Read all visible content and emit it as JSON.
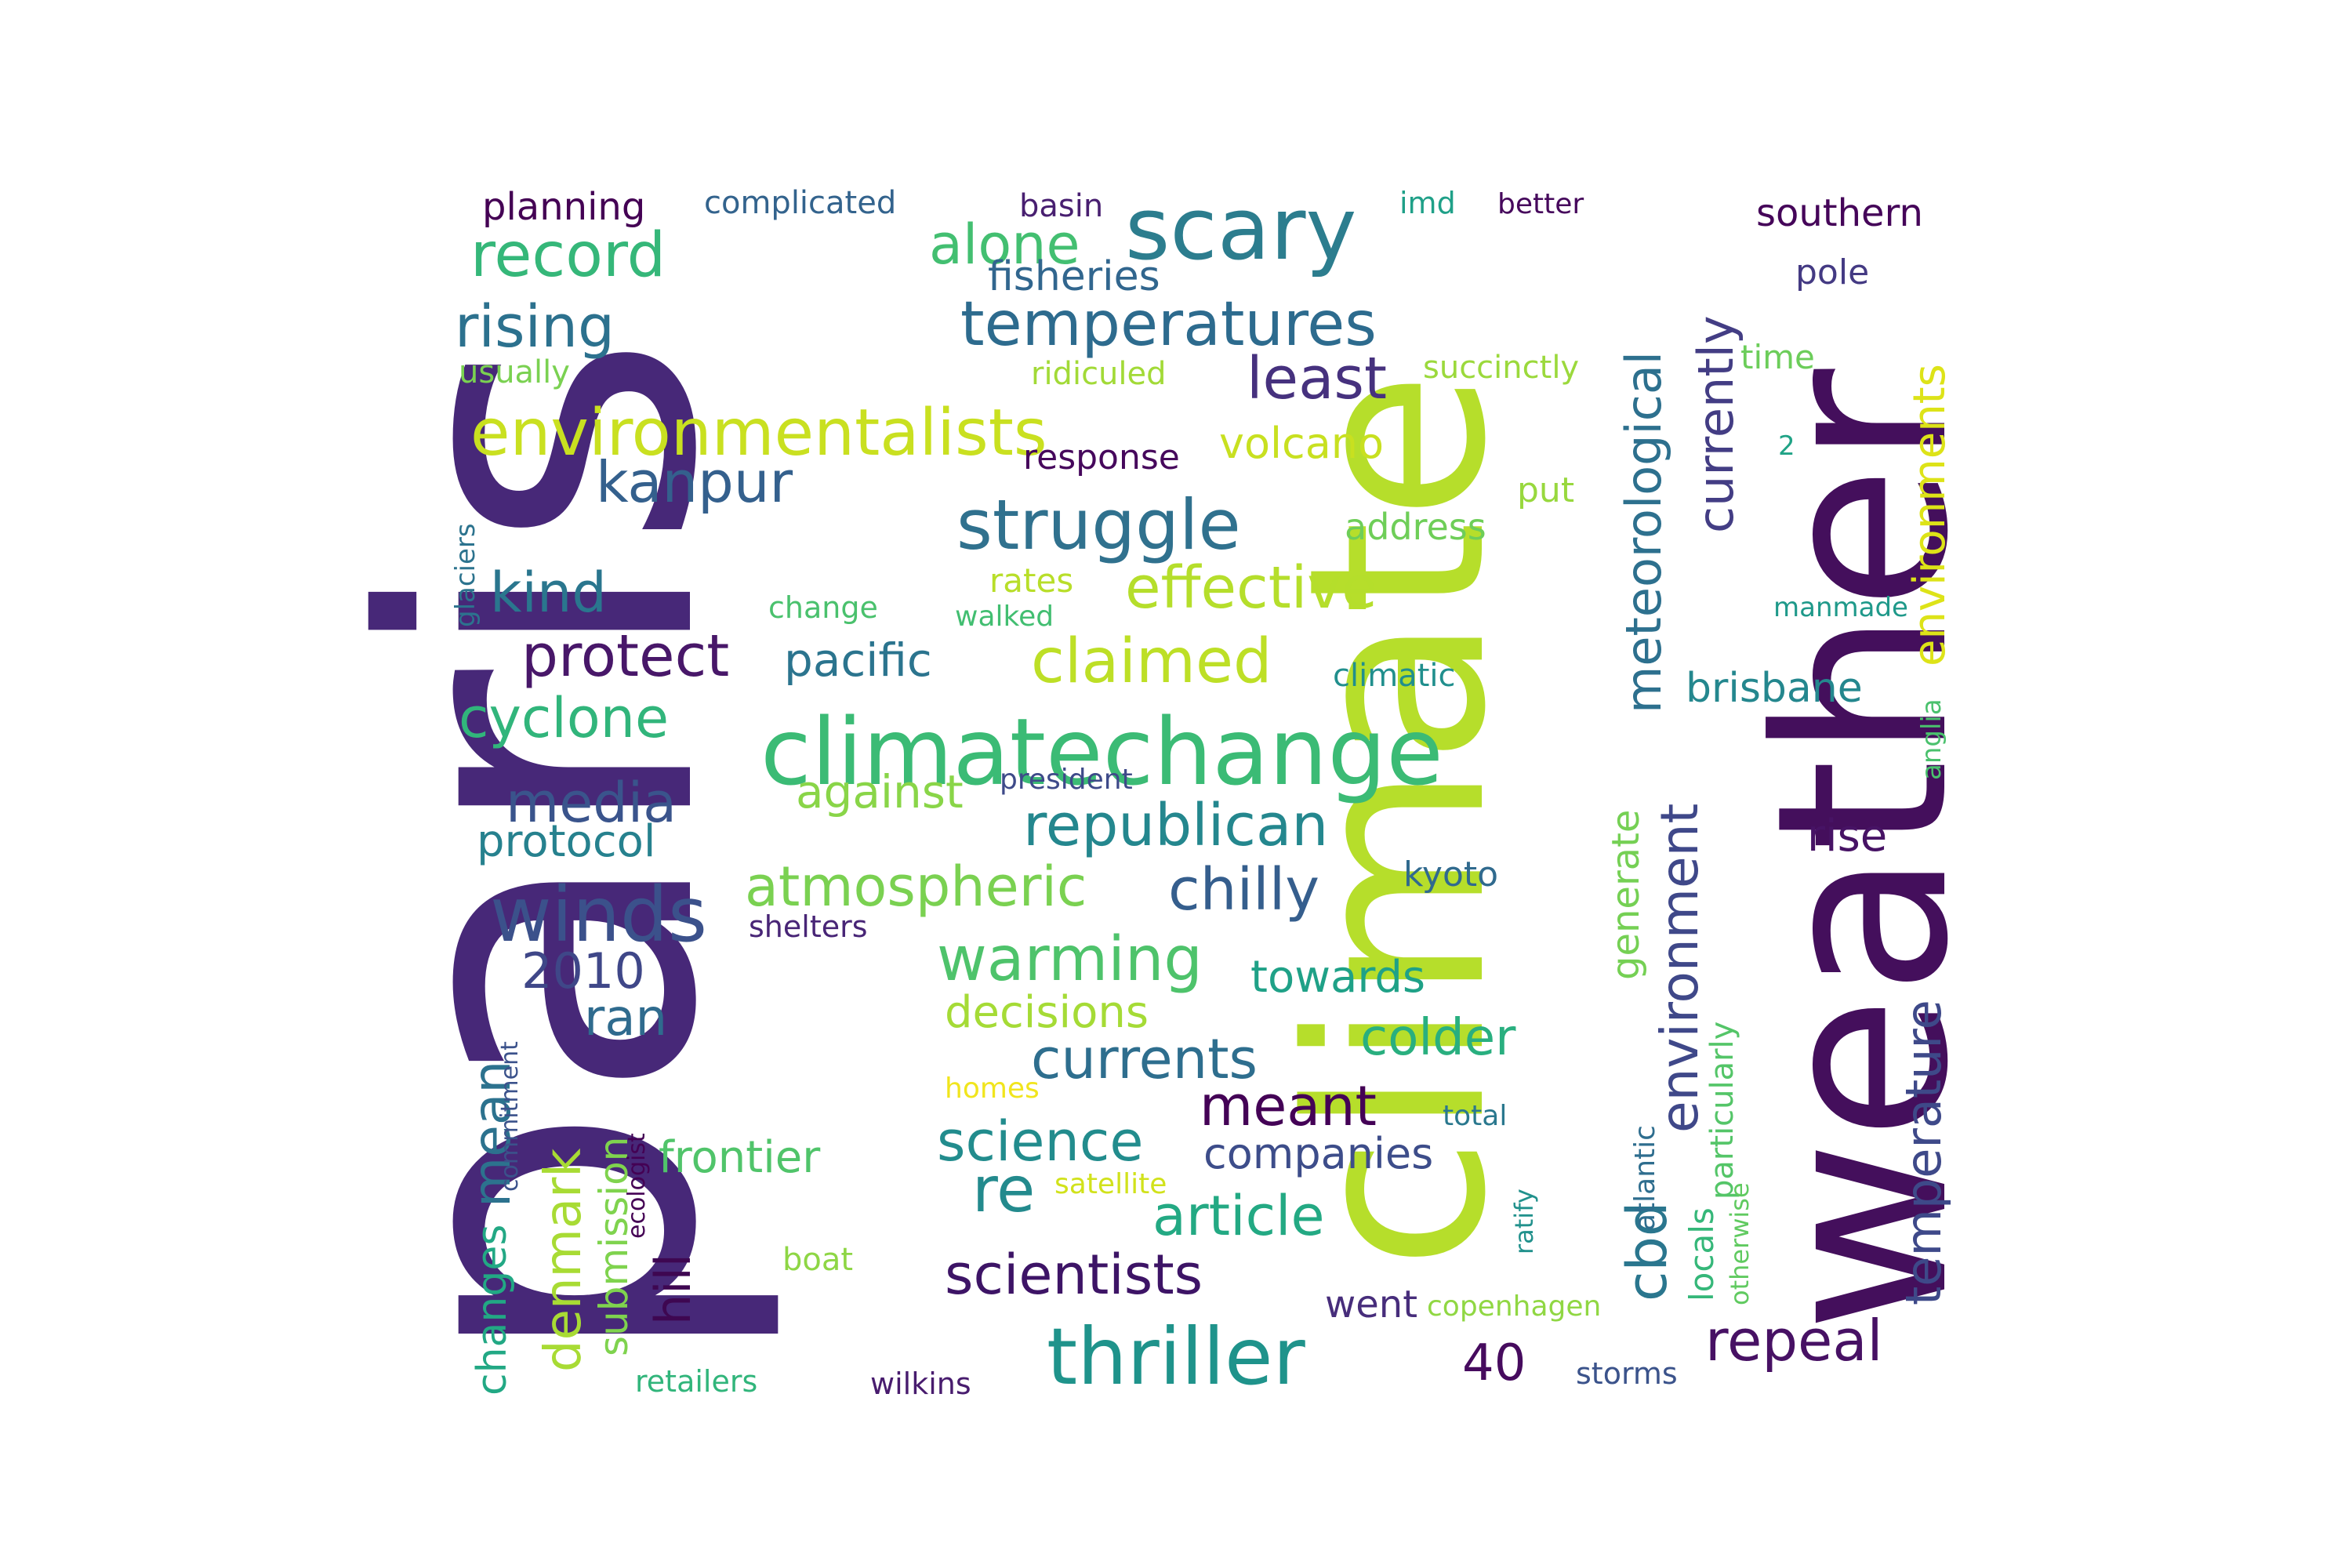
{
  "words": [
    {
      "text": "paris",
      "color": "#472878"
    },
    {
      "text": "climate",
      "color": "#b6de2b"
    },
    {
      "text": "weather",
      "color": "#440f5c"
    },
    {
      "text": "climatechange",
      "color": "#3bbb75"
    },
    {
      "text": "scary",
      "color": "#2c7d8e"
    },
    {
      "text": "environmentalists",
      "color": "#c9e020"
    },
    {
      "text": "temperatures",
      "color": "#2d6b8e"
    },
    {
      "text": "struggle",
      "color": "#30718e"
    },
    {
      "text": "record",
      "color": "#35b779"
    },
    {
      "text": "rising",
      "color": "#2c718e"
    },
    {
      "text": "alone",
      "color": "#43bf71"
    },
    {
      "text": "least",
      "color": "#46317e"
    },
    {
      "text": "kanpur",
      "color": "#34608d"
    },
    {
      "text": "effective",
      "color": "#b5de2b"
    },
    {
      "text": "claimed",
      "color": "#bddf26"
    },
    {
      "text": "protect",
      "color": "#481769"
    },
    {
      "text": "pacific",
      "color": "#2b748e"
    },
    {
      "text": "kind",
      "color": "#2a768e"
    },
    {
      "text": "cyclone",
      "color": "#31b57b"
    },
    {
      "text": "media",
      "color": "#3a548c"
    },
    {
      "text": "republican",
      "color": "#24878e"
    },
    {
      "text": "against",
      "color": "#89d548"
    },
    {
      "text": "protocol",
      "color": "#26818e"
    },
    {
      "text": "winds",
      "color": "#3b518b"
    },
    {
      "text": "atmospheric",
      "color": "#7ad151"
    },
    {
      "text": "chilly",
      "color": "#355e8d"
    },
    {
      "text": "warming",
      "color": "#4ec36b"
    },
    {
      "text": "2010",
      "color": "#3f4788"
    },
    {
      "text": "ran",
      "color": "#2f6b8e"
    },
    {
      "text": "towards",
      "color": "#1fa187"
    },
    {
      "text": "decisions",
      "color": "#a5db36"
    },
    {
      "text": "currents",
      "color": "#2e6e8e"
    },
    {
      "text": "colder",
      "color": "#29af7f"
    },
    {
      "text": "meant",
      "color": "#440256"
    },
    {
      "text": "science",
      "color": "#228c8d"
    },
    {
      "text": "companies",
      "color": "#3d4d8a"
    },
    {
      "text": "re",
      "color": "#238a8d"
    },
    {
      "text": "article",
      "color": "#23a983"
    },
    {
      "text": "frontier",
      "color": "#50c46a"
    },
    {
      "text": "scientists",
      "color": "#3d1466"
    },
    {
      "text": "thriller",
      "color": "#1f938b"
    },
    {
      "text": "40",
      "color": "#460b5e"
    },
    {
      "text": "went",
      "color": "#472d7b"
    },
    {
      "text": "copenhagen",
      "color": "#90d743"
    },
    {
      "text": "storms",
      "color": "#3b538b"
    },
    {
      "text": "retailers",
      "color": "#31b57b"
    },
    {
      "text": "wilkins",
      "color": "#481c6e"
    },
    {
      "text": "boat",
      "color": "#8ed645"
    },
    {
      "text": "satellite",
      "color": "#d1e21b"
    },
    {
      "text": "homes",
      "color": "#f1e51d"
    },
    {
      "text": "total",
      "color": "#2a788e"
    },
    {
      "text": "kyoto",
      "color": "#306a8e"
    },
    {
      "text": "shelters",
      "color": "#482576"
    },
    {
      "text": "president",
      "color": "#3e4a89"
    },
    {
      "text": "fisheries",
      "color": "#31668e"
    },
    {
      "text": "planning",
      "color": "#440154"
    },
    {
      "text": "complicated",
      "color": "#33638d"
    },
    {
      "text": "basin",
      "color": "#481f70"
    },
    {
      "text": "imd",
      "color": "#1fa088"
    },
    {
      "text": "better",
      "color": "#46085c"
    },
    {
      "text": "southern",
      "color": "#450559"
    },
    {
      "text": "pole",
      "color": "#443a83"
    },
    {
      "text": "time",
      "color": "#6ccd5a"
    },
    {
      "text": "succinctly",
      "color": "#9bd93c"
    },
    {
      "text": "ridiculed",
      "color": "#a2da37"
    },
    {
      "text": "usually",
      "color": "#7ad151"
    },
    {
      "text": "response",
      "color": "#46085c"
    },
    {
      "text": "volcano",
      "color": "#c8e020"
    },
    {
      "text": "2",
      "color": "#20a386"
    },
    {
      "text": "put",
      "color": "#98d83e"
    },
    {
      "text": "address",
      "color": "#6ece58"
    },
    {
      "text": "rates",
      "color": "#b8de29"
    },
    {
      "text": "change",
      "color": "#4ac16d"
    },
    {
      "text": "walked",
      "color": "#42be71"
    },
    {
      "text": "climatic",
      "color": "#218f8d"
    },
    {
      "text": "manmade",
      "color": "#1f998a"
    },
    {
      "text": "brisbane",
      "color": "#24878e"
    },
    {
      "text": "rise",
      "color": "#471365"
    },
    {
      "text": "repeal",
      "color": "#471164"
    },
    {
      "text": "currently",
      "color": "#433d84"
    },
    {
      "text": "meteorological",
      "color": "#2d708e"
    },
    {
      "text": "environments",
      "color": "#dde318"
    },
    {
      "text": "environment",
      "color": "#3f4889"
    },
    {
      "text": "generate",
      "color": "#75d054"
    },
    {
      "text": "cbd",
      "color": "#2a768e"
    },
    {
      "text": "locals",
      "color": "#35b779"
    },
    {
      "text": "particularly",
      "color": "#54c568"
    },
    {
      "text": "otherwise",
      "color": "#60ca60"
    },
    {
      "text": "temperature",
      "color": "#3e4989"
    },
    {
      "text": "atlantic",
      "color": "#2e6d8e"
    },
    {
      "text": "ratify",
      "color": "#21918c"
    },
    {
      "text": "anglia",
      "color": "#4ac16d"
    },
    {
      "text": "glaciers",
      "color": "#2c738e"
    },
    {
      "text": "changes",
      "color": "#22a884"
    },
    {
      "text": "mean",
      "color": "#2c728e"
    },
    {
      "text": "denmark",
      "color": "#a8db34"
    },
    {
      "text": "submission",
      "color": "#7fd34e"
    },
    {
      "text": "commitment",
      "color": "#3b528b"
    },
    {
      "text": "ecologist",
      "color": "#440154"
    },
    {
      "text": "hill",
      "color": "#3e0751"
    }
  ]
}
